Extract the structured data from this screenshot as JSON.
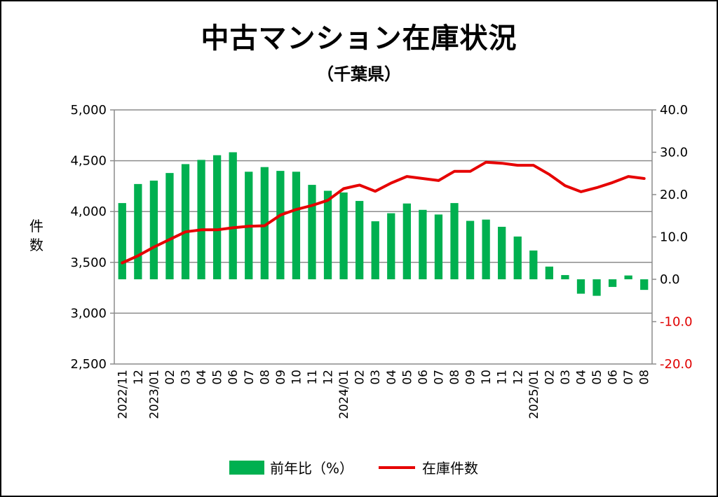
{
  "chart_data": {
    "type": "bar+line",
    "title": "中古マンション在庫状況",
    "subtitle": "（千葉県）",
    "ylabel_left": "件数",
    "y_left": {
      "min": 2500,
      "max": 5000,
      "ticks": [
        "2,500",
        "3,000",
        "3,500",
        "4,000",
        "4,500",
        "5,000"
      ]
    },
    "y_right": {
      "min": -20,
      "max": 40,
      "ticks": [
        "-20.0",
        "-10.0",
        "0.0",
        "10.0",
        "20.0",
        "30.0",
        "40.0"
      ]
    },
    "categories": [
      "2022/11",
      "12",
      "2023/01",
      "02",
      "03",
      "04",
      "05",
      "06",
      "07",
      "08",
      "09",
      "10",
      "11",
      "12",
      "2024/01",
      "02",
      "03",
      "04",
      "05",
      "06",
      "07",
      "08",
      "09",
      "10",
      "11",
      "12",
      "2025/01",
      "02",
      "03",
      "04",
      "05",
      "06",
      "07",
      "08"
    ],
    "series": [
      {
        "name": "前年比（%）",
        "type": "bar",
        "axis": "right",
        "color": "#00b050",
        "values": [
          18.0,
          22.5,
          23.3,
          25.1,
          27.2,
          28.2,
          29.3,
          30.0,
          25.4,
          26.5,
          25.6,
          25.4,
          22.3,
          20.9,
          20.5,
          18.5,
          13.7,
          15.6,
          17.9,
          16.4,
          15.3,
          18.0,
          13.8,
          14.1,
          12.4,
          10.1,
          6.8,
          3.0,
          1.0,
          -3.4,
          -3.9,
          -1.8,
          0.9,
          -2.5
        ]
      },
      {
        "name": "在庫件数",
        "type": "line",
        "axis": "left",
        "color": "#e60000",
        "values": [
          3495,
          3565,
          3650,
          3725,
          3800,
          3820,
          3820,
          3840,
          3855,
          3860,
          3965,
          4020,
          4060,
          4110,
          4225,
          4260,
          4200,
          4280,
          4345,
          4325,
          4305,
          4395,
          4395,
          4485,
          4475,
          4455,
          4455,
          4365,
          4255,
          4195,
          4235,
          4285,
          4345,
          4325
        ]
      }
    ],
    "legend_position": "bottom",
    "grid": true
  }
}
